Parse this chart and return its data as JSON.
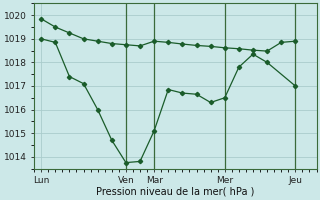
{
  "xlabel": "Pression niveau de la mer( hPa )",
  "background_color": "#cce8e8",
  "grid_color": "#aacccc",
  "line_color": "#1a5c2a",
  "vline_color": "#3a6a3a",
  "ylim": [
    1013.5,
    1020.5
  ],
  "yticks": [
    1014,
    1015,
    1016,
    1017,
    1018,
    1019,
    1020
  ],
  "xlim": [
    0,
    40
  ],
  "xtick_positions": [
    1,
    13,
    17,
    27,
    37
  ],
  "xtick_labels": [
    "Lun",
    "Ven",
    "Mar",
    "Mer",
    "Jeu"
  ],
  "vline_positions": [
    13,
    17,
    27,
    37
  ],
  "line1_x": [
    1,
    3,
    5,
    7,
    9,
    11,
    13,
    15,
    17,
    19,
    21,
    23,
    25,
    27,
    29,
    31,
    33,
    35,
    37
  ],
  "line1_y": [
    1019.85,
    1019.5,
    1019.25,
    1019.0,
    1018.9,
    1018.8,
    1018.75,
    1018.7,
    1018.9,
    1018.85,
    1018.78,
    1018.72,
    1018.68,
    1018.62,
    1018.58,
    1018.52,
    1018.48,
    1018.85,
    1018.9
  ],
  "line2_x": [
    1,
    3,
    5,
    7,
    9,
    11,
    13,
    15,
    17,
    19,
    21,
    23,
    25,
    27,
    29,
    31,
    33,
    37
  ],
  "line2_y": [
    1019.0,
    1018.85,
    1017.4,
    1017.1,
    1016.0,
    1014.7,
    1013.75,
    1013.8,
    1015.1,
    1016.85,
    1016.7,
    1016.65,
    1016.3,
    1016.5,
    1017.8,
    1018.35,
    1018.0,
    1017.0
  ],
  "figsize": [
    3.2,
    2.0
  ],
  "dpi": 100,
  "label_fontsize": 7,
  "tick_fontsize": 6.5
}
